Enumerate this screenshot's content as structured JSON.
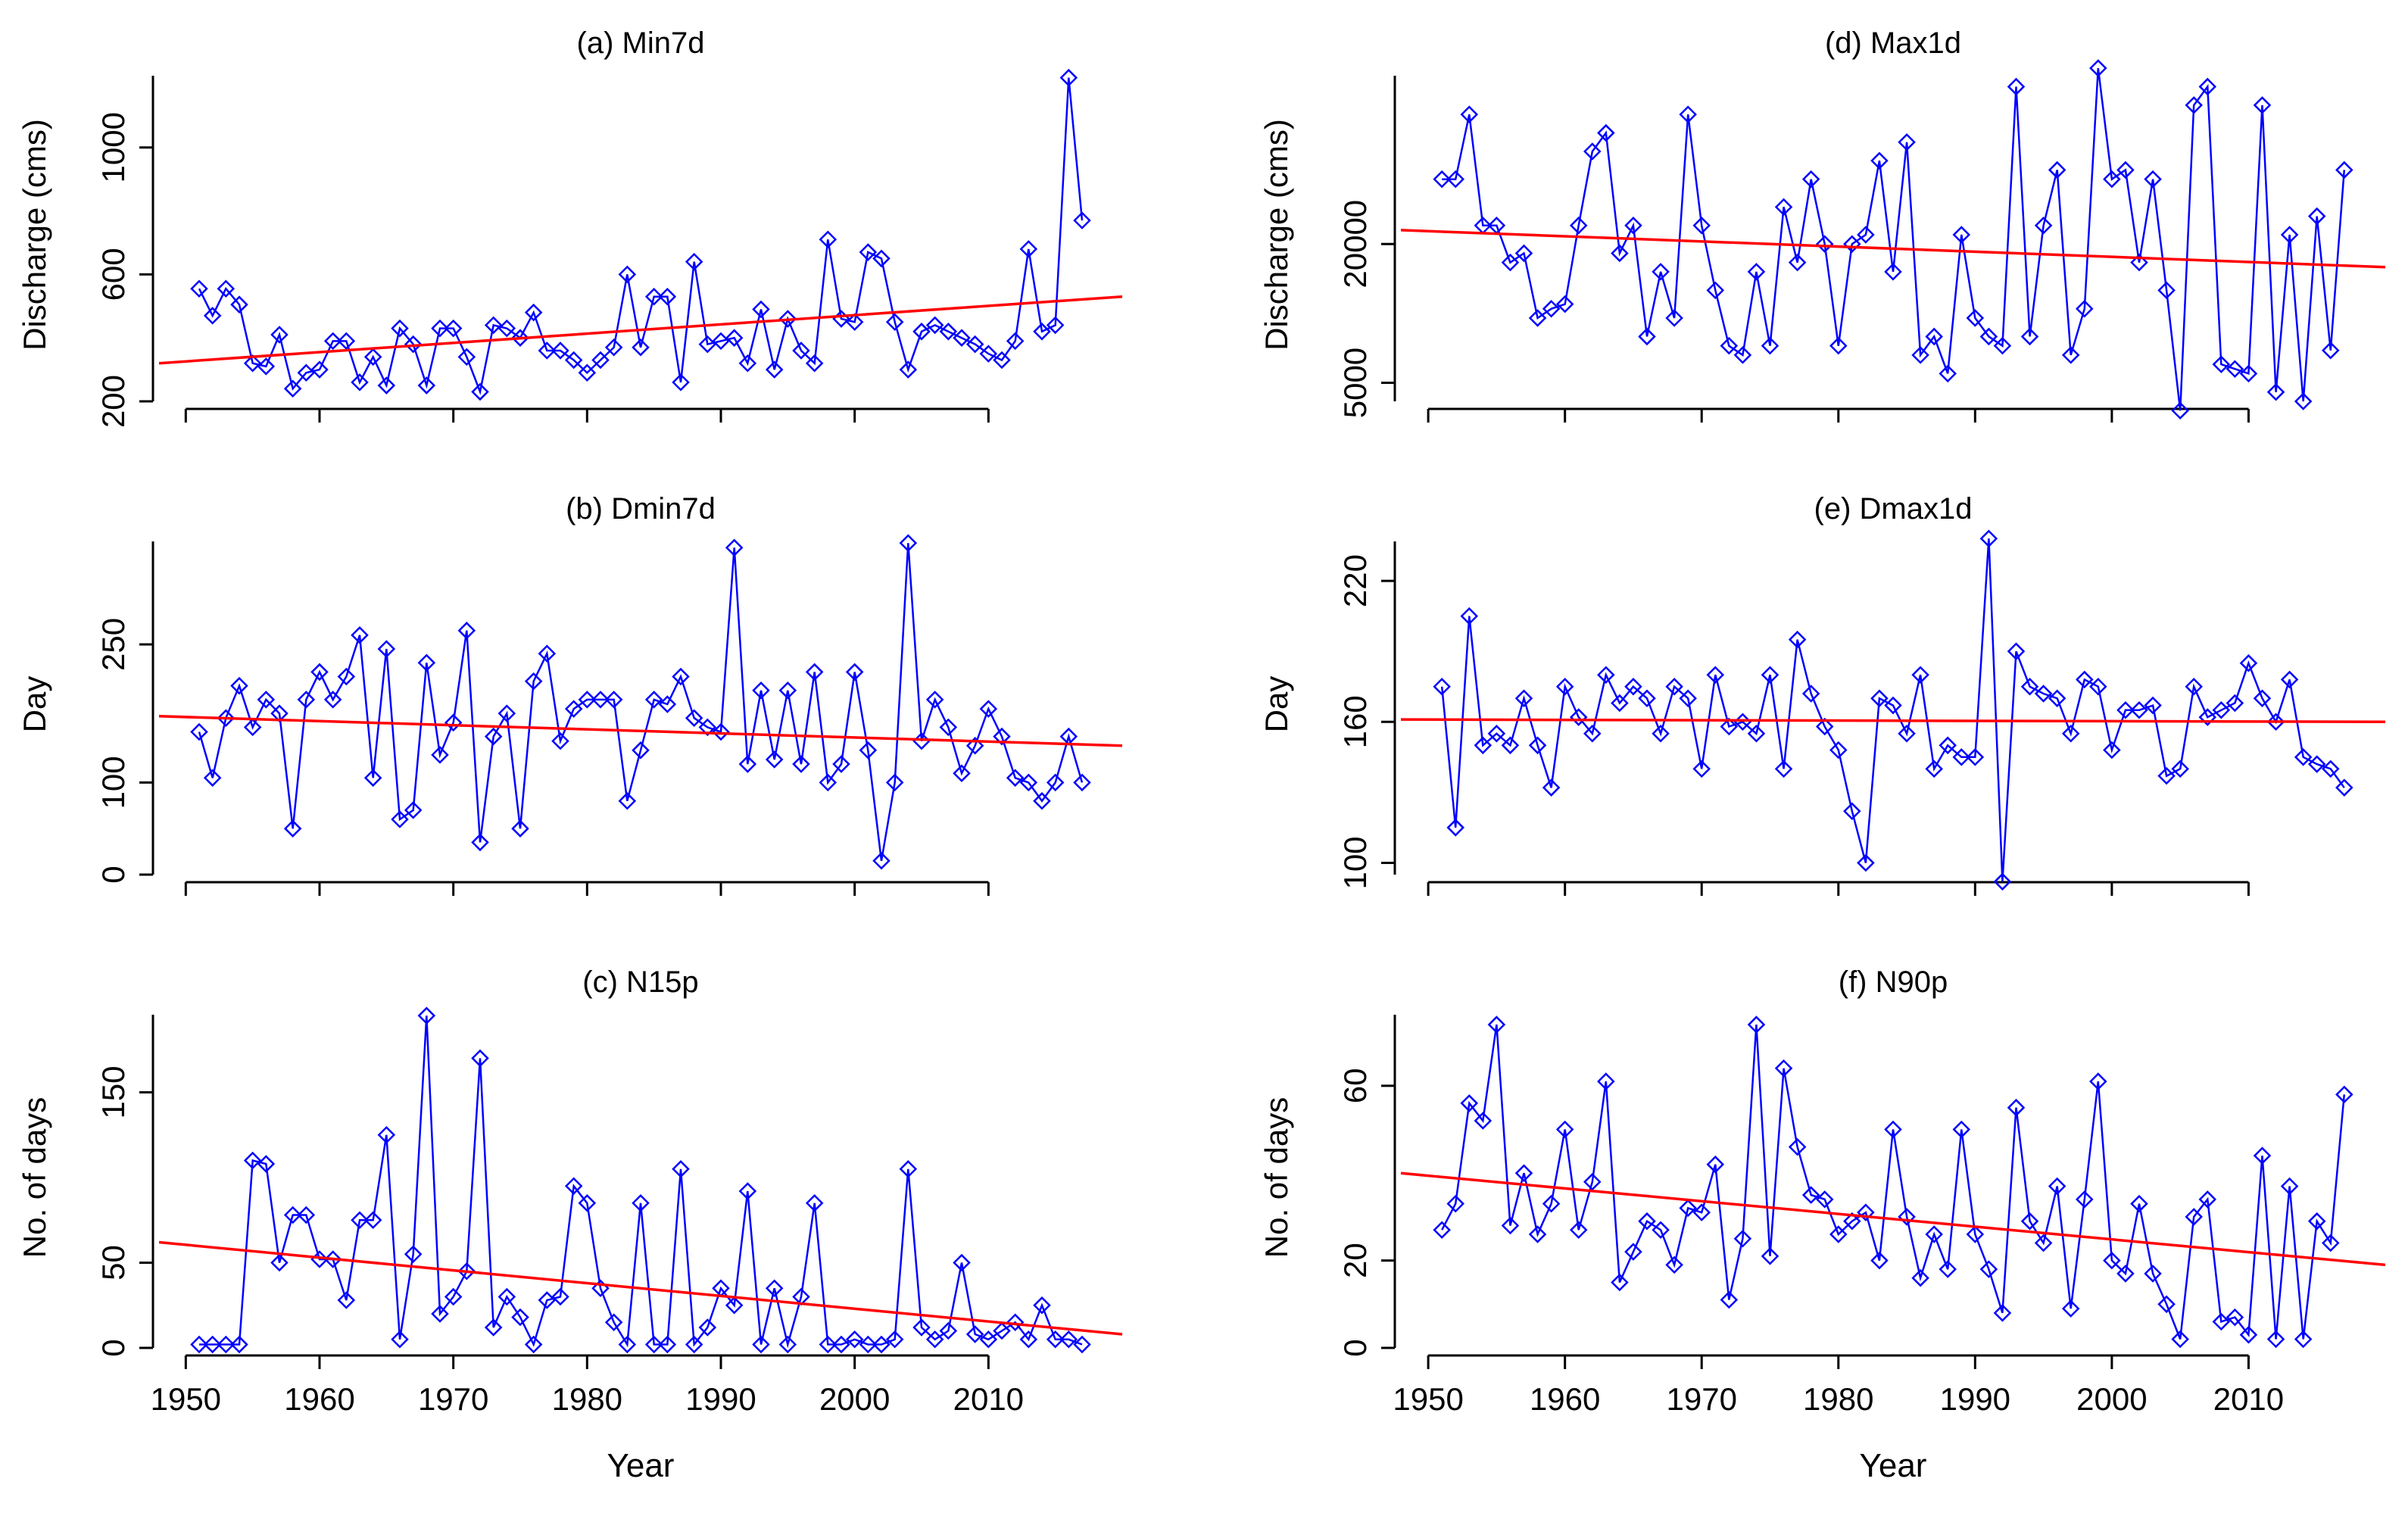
{
  "figure": {
    "x_label": "Year",
    "x_ticks": [
      1950,
      1960,
      1970,
      1980,
      1990,
      2000,
      2010
    ],
    "colors": {
      "series": "#0000ff",
      "trend": "#ff0000",
      "axis": "#000000"
    }
  },
  "chart_data": [
    {
      "id": "a",
      "type": "line",
      "title": "(a) Min7d",
      "ylabel": "Discharge (cms)",
      "yticks": [
        200,
        600,
        1000
      ],
      "ylim": [
        200,
        1250
      ],
      "xlim": [
        1948,
        2020
      ],
      "x": [
        1951,
        1952,
        1953,
        1954,
        1955,
        1956,
        1957,
        1958,
        1959,
        1960,
        1961,
        1962,
        1963,
        1964,
        1965,
        1966,
        1967,
        1968,
        1969,
        1970,
        1971,
        1972,
        1973,
        1974,
        1975,
        1976,
        1977,
        1978,
        1979,
        1980,
        1981,
        1982,
        1983,
        1984,
        1985,
        1986,
        1987,
        1988,
        1989,
        1990,
        1991,
        1992,
        1993,
        1994,
        1995,
        1996,
        1997,
        1998,
        1999,
        2000,
        2001,
        2002,
        2003,
        2004,
        2005,
        2006,
        2007,
        2008,
        2009,
        2010,
        2011,
        2012,
        2013,
        2014,
        2015,
        2016,
        2017
      ],
      "values": [
        555,
        470,
        555,
        505,
        320,
        310,
        410,
        240,
        290,
        300,
        390,
        390,
        260,
        340,
        250,
        430,
        380,
        250,
        430,
        430,
        340,
        230,
        440,
        430,
        400,
        480,
        360,
        360,
        330,
        290,
        330,
        370,
        600,
        370,
        530,
        530,
        260,
        640,
        380,
        390,
        400,
        320,
        490,
        300,
        460,
        360,
        320,
        710,
        460,
        450,
        670,
        650,
        450,
        300,
        420,
        440,
        420,
        400,
        380,
        350,
        330,
        390,
        680,
        420,
        440,
        1220,
        770
      ],
      "trend": {
        "start": 320,
        "end": 530
      }
    },
    {
      "id": "b",
      "type": "line",
      "title": "(b) Dmin7d",
      "ylabel": "Day",
      "yticks": [
        0,
        100,
        250
      ],
      "ylim": [
        0,
        370
      ],
      "xlim": [
        1948,
        2020
      ],
      "x": [
        1951,
        1952,
        1953,
        1954,
        1955,
        1956,
        1957,
        1958,
        1959,
        1960,
        1961,
        1962,
        1963,
        1964,
        1965,
        1966,
        1967,
        1968,
        1969,
        1970,
        1971,
        1972,
        1973,
        1974,
        1975,
        1976,
        1977,
        1978,
        1979,
        1980,
        1981,
        1982,
        1983,
        1984,
        1985,
        1986,
        1987,
        1988,
        1989,
        1990,
        1991,
        1992,
        1993,
        1994,
        1995,
        1996,
        1997,
        1998,
        1999,
        2000,
        2001,
        2002,
        2003,
        2004,
        2005,
        2006,
        2007,
        2008,
        2009,
        2010,
        2011,
        2012,
        2013,
        2014,
        2015,
        2016,
        2017
      ],
      "values": [
        155,
        105,
        170,
        205,
        160,
        190,
        175,
        50,
        190,
        220,
        190,
        215,
        260,
        105,
        245,
        60,
        70,
        230,
        130,
        165,
        265,
        35,
        150,
        175,
        50,
        210,
        240,
        145,
        180,
        190,
        190,
        190,
        80,
        135,
        190,
        185,
        215,
        170,
        160,
        155,
        355,
        120,
        200,
        125,
        200,
        120,
        220,
        100,
        120,
        220,
        135,
        15,
        100,
        360,
        145,
        190,
        160,
        110,
        140,
        180,
        150,
        105,
        100,
        80,
        100,
        150,
        100
      ],
      "trend": {
        "start": 172,
        "end": 140
      }
    },
    {
      "id": "c",
      "type": "line",
      "title": "(c) N15p",
      "ylabel": "No. of days",
      "yticks": [
        0,
        50,
        150
      ],
      "ylim": [
        0,
        200
      ],
      "xlim": [
        1948,
        2020
      ],
      "x": [
        1951,
        1952,
        1953,
        1954,
        1955,
        1956,
        1957,
        1958,
        1959,
        1960,
        1961,
        1962,
        1963,
        1964,
        1965,
        1966,
        1967,
        1968,
        1969,
        1970,
        1971,
        1972,
        1973,
        1974,
        1975,
        1976,
        1977,
        1978,
        1979,
        1980,
        1981,
        1982,
        1983,
        1984,
        1985,
        1986,
        1987,
        1988,
        1989,
        1990,
        1991,
        1992,
        1993,
        1994,
        1995,
        1996,
        1997,
        1998,
        1999,
        2000,
        2001,
        2002,
        2003,
        2004,
        2005,
        2006,
        2007,
        2008,
        2009,
        2010,
        2011,
        2012,
        2013,
        2014,
        2015,
        2016,
        2017
      ],
      "values": [
        2,
        2,
        2,
        2,
        110,
        108,
        50,
        78,
        78,
        52,
        52,
        28,
        75,
        75,
        125,
        5,
        55,
        195,
        20,
        30,
        45,
        170,
        12,
        30,
        18,
        2,
        28,
        30,
        95,
        85,
        35,
        15,
        2,
        85,
        2,
        2,
        105,
        2,
        12,
        35,
        25,
        92,
        2,
        35,
        2,
        30,
        85,
        2,
        2,
        5,
        2,
        2,
        5,
        105,
        12,
        5,
        10,
        50,
        8,
        5,
        10,
        15,
        5,
        25,
        5,
        5,
        2
      ],
      "trend": {
        "start": 62,
        "end": 8
      }
    },
    {
      "id": "d",
      "type": "line",
      "title": "(d) Max1d",
      "ylabel": "Discharge (cms)",
      "yticks": [
        5000,
        20000
      ],
      "ylim": [
        3000,
        39000
      ],
      "xlim": [
        1948,
        2020
      ],
      "x": [
        1951,
        1952,
        1953,
        1954,
        1955,
        1956,
        1957,
        1958,
        1959,
        1960,
        1961,
        1962,
        1963,
        1964,
        1965,
        1966,
        1967,
        1968,
        1969,
        1970,
        1971,
        1972,
        1973,
        1974,
        1975,
        1976,
        1977,
        1978,
        1979,
        1980,
        1981,
        1982,
        1983,
        1984,
        1985,
        1986,
        1987,
        1988,
        1989,
        1990,
        1991,
        1992,
        1993,
        1994,
        1995,
        1996,
        1997,
        1998,
        1999,
        2000,
        2001,
        2002,
        2003,
        2004,
        2005,
        2006,
        2007,
        2008,
        2009,
        2010,
        2011,
        2012,
        2013,
        2014,
        2015,
        2016,
        2017
      ],
      "values": [
        27000,
        27000,
        34000,
        22000,
        22000,
        18000,
        19000,
        12000,
        13000,
        13500,
        22000,
        30000,
        32000,
        19000,
        22000,
        10000,
        17000,
        12000,
        34000,
        22000,
        15000,
        9000,
        8000,
        17000,
        9000,
        24000,
        18000,
        27000,
        20000,
        9000,
        20000,
        21000,
        29000,
        17000,
        31000,
        8000,
        10000,
        6000,
        21000,
        12000,
        10000,
        9000,
        37000,
        10000,
        22000,
        28000,
        8000,
        13000,
        39000,
        27000,
        28000,
        18000,
        27000,
        15000,
        2000,
        35000,
        37000,
        7000,
        6500,
        6000,
        35000,
        4000,
        21000,
        3000,
        23000,
        8500,
        28000
      ],
      "trend": {
        "start": 21500,
        "end": 17500
      }
    },
    {
      "id": "e",
      "type": "line",
      "title": "(e) Dmax1d",
      "ylabel": "Day",
      "yticks": [
        100,
        160,
        220
      ],
      "ylim": [
        95,
        240
      ],
      "xlim": [
        1948,
        2020
      ],
      "x": [
        1951,
        1952,
        1953,
        1954,
        1955,
        1956,
        1957,
        1958,
        1959,
        1960,
        1961,
        1962,
        1963,
        1964,
        1965,
        1966,
        1967,
        1968,
        1969,
        1970,
        1971,
        1972,
        1973,
        1974,
        1975,
        1976,
        1977,
        1978,
        1979,
        1980,
        1981,
        1982,
        1983,
        1984,
        1985,
        1986,
        1987,
        1988,
        1989,
        1990,
        1991,
        1992,
        1993,
        1994,
        1995,
        1996,
        1997,
        1998,
        1999,
        2000,
        2001,
        2002,
        2003,
        2004,
        2005,
        2006,
        2007,
        2008,
        2009,
        2010,
        2011,
        2012,
        2013,
        2014,
        2015,
        2016,
        2017
      ],
      "values": [
        175,
        115,
        205,
        150,
        155,
        150,
        170,
        150,
        132,
        175,
        162,
        155,
        180,
        168,
        175,
        170,
        155,
        175,
        170,
        140,
        180,
        158,
        160,
        155,
        180,
        140,
        195,
        172,
        158,
        148,
        122,
        100,
        170,
        167,
        155,
        180,
        140,
        150,
        145,
        145,
        238,
        92,
        190,
        175,
        172,
        170,
        155,
        178,
        175,
        148,
        165,
        165,
        167,
        137,
        140,
        175,
        162,
        165,
        168,
        185,
        170,
        160,
        178,
        145,
        142,
        140,
        132
      ],
      "trend": {
        "start": 161,
        "end": 160
      }
    },
    {
      "id": "f",
      "type": "line",
      "title": "(f) N90p",
      "ylabel": "No. of days",
      "yticks": [
        0,
        20,
        60
      ],
      "ylim": [
        0,
        78
      ],
      "xlim": [
        1948,
        2020
      ],
      "x": [
        1951,
        1952,
        1953,
        1954,
        1955,
        1956,
        1957,
        1958,
        1959,
        1960,
        1961,
        1962,
        1963,
        1964,
        1965,
        1966,
        1967,
        1968,
        1969,
        1970,
        1971,
        1972,
        1973,
        1974,
        1975,
        1976,
        1977,
        1978,
        1979,
        1980,
        1981,
        1982,
        1983,
        1984,
        1985,
        1986,
        1987,
        1988,
        1989,
        1990,
        1991,
        1992,
        1993,
        1994,
        1995,
        1996,
        1997,
        1998,
        1999,
        2000,
        2001,
        2002,
        2003,
        2004,
        2005,
        2006,
        2007,
        2008,
        2009,
        2010,
        2011,
        2012,
        2013,
        2014,
        2015,
        2016,
        2017
      ],
      "values": [
        27,
        33,
        56,
        52,
        74,
        28,
        40,
        26,
        33,
        50,
        27,
        38,
        61,
        15,
        22,
        29,
        27,
        19,
        32,
        31,
        42,
        11,
        25,
        74,
        21,
        64,
        46,
        35,
        34,
        26,
        29,
        31,
        20,
        50,
        30,
        16,
        26,
        18,
        50,
        26,
        18,
        8,
        55,
        29,
        24,
        37,
        9,
        34,
        61,
        20,
        17,
        33,
        17,
        10,
        2,
        30,
        34,
        6,
        7,
        3,
        44,
        2,
        37,
        2,
        29,
        24,
        58
      ],
      "trend": {
        "start": 40,
        "end": 19
      }
    }
  ]
}
